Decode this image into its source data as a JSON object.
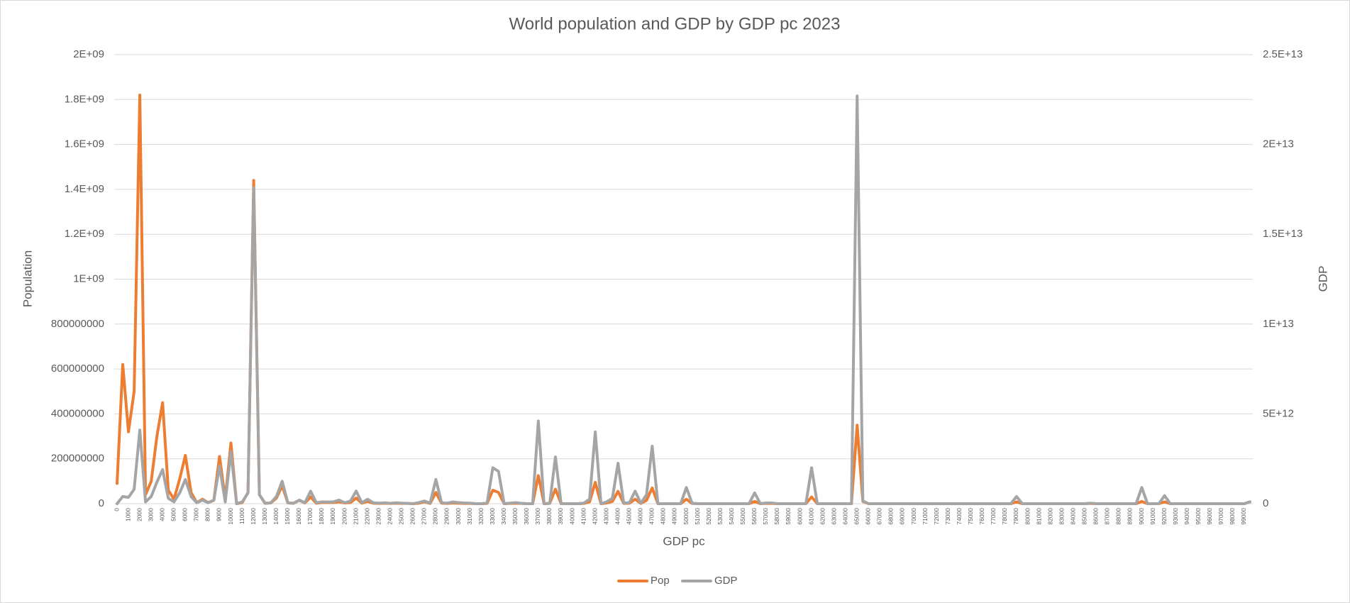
{
  "chart_data": {
    "type": "line",
    "title": "World population and GDP by GDP pc 2023",
    "x_label": "GDP pc",
    "y_label": "Population",
    "y2_label": "GDP",
    "grid": true,
    "legend": "bottom",
    "categories": [
      "0",
      null,
      "1000",
      null,
      "2000",
      null,
      "3000",
      null,
      "4000",
      null,
      "5000",
      null,
      "6000",
      null,
      "7000",
      null,
      "8000",
      null,
      "9000",
      null,
      "10000",
      null,
      "11000",
      null,
      "12000",
      null,
      "13000",
      null,
      "14000",
      null,
      "15000",
      null,
      "16000",
      null,
      "17000",
      null,
      "18000",
      null,
      "19000",
      null,
      "20000",
      null,
      "21000",
      null,
      "22000",
      null,
      "23000",
      null,
      "24000",
      null,
      "25000",
      null,
      "26000",
      null,
      "27000",
      null,
      "28000",
      null,
      "29000",
      null,
      "30000",
      null,
      "31000",
      null,
      "32000",
      null,
      "33000",
      null,
      "34000",
      null,
      "35000",
      null,
      "36000",
      null,
      "37000",
      null,
      "38000",
      null,
      "39000",
      null,
      "40000",
      null,
      "41000",
      null,
      "42000",
      null,
      "43000",
      null,
      "44000",
      null,
      "45000",
      null,
      "46000",
      null,
      "47000",
      null,
      "48000",
      null,
      "49000",
      null,
      "50000",
      null,
      "51000",
      null,
      "52000",
      null,
      "53000",
      null,
      "54000",
      null,
      "55000",
      null,
      "56000",
      null,
      "57000",
      null,
      "58000",
      null,
      "59000",
      null,
      "60000",
      null,
      "61000",
      null,
      "62000",
      null,
      "63000",
      null,
      "64000",
      null,
      "65000",
      null,
      "66000",
      null,
      "67000",
      null,
      "68000",
      null,
      "69000",
      null,
      "70000",
      null,
      "71000",
      null,
      "72000",
      null,
      "73000",
      null,
      "74000",
      null,
      "75000",
      null,
      "76000",
      null,
      "77000",
      null,
      "78000",
      null,
      "79000",
      null,
      "80000",
      null,
      "81000",
      null,
      "82000",
      null,
      "83000",
      null,
      "84000",
      null,
      "85000",
      null,
      "86000",
      null,
      "87000",
      null,
      "88000",
      null,
      "89000",
      null,
      "90000",
      null,
      "91000",
      null,
      "92000",
      null,
      "93000",
      null,
      "94000",
      null,
      "95000",
      null,
      "96000",
      null,
      "97000",
      null,
      "98000",
      null,
      "99000",
      null
    ],
    "ylim": [
      0,
      2000000000
    ],
    "yticks": [
      0,
      200000000,
      400000000,
      600000000,
      800000000,
      {
        "value": 1000000000,
        "label": "1E+09"
      },
      {
        "value": 1200000000,
        "label": "1.2E+09"
      },
      {
        "value": 1400000000,
        "label": "1.4E+09"
      },
      {
        "value": 1600000000,
        "label": "1.6E+09"
      },
      {
        "value": 1800000000,
        "label": "1.8E+09"
      },
      {
        "value": 2000000000,
        "label": "2E+09"
      }
    ],
    "y2lim": [
      0,
      25000000000000
    ],
    "y2ticks": [
      0,
      {
        "value": 5000000000000,
        "label": "5E+12"
      },
      {
        "value": 10000000000000,
        "label": "1E+13"
      },
      {
        "value": 15000000000000,
        "label": "1.5E+13"
      },
      {
        "value": 20000000000000,
        "label": "2E+13"
      },
      {
        "value": 25000000000000,
        "label": "2.5E+13"
      }
    ],
    "series": [
      {
        "name": "Pop",
        "color": "#ED7D31",
        "axis": "y",
        "values": [
          90000000,
          620000000,
          320000000,
          500000000,
          1820000000,
          40000000,
          100000000,
          300000000,
          450000000,
          60000000,
          20000000,
          110000000,
          215000000,
          50000000,
          5000000,
          20000000,
          5000000,
          15000000,
          210000000,
          20000000,
          270000000,
          0,
          5000000,
          50000000,
          1440000000,
          40000000,
          2000000,
          3000000,
          25000000,
          80000000,
          3000000,
          2000000,
          15000000,
          3000000,
          30000000,
          2000000,
          5000000,
          5000000,
          5000000,
          8000000,
          3000000,
          5000000,
          25000000,
          2000000,
          10000000,
          2000000,
          1000000,
          2000000,
          1000000,
          2000000,
          1000000,
          1000000,
          0,
          2000000,
          8000000,
          1000000,
          50000000,
          2000000,
          1000000,
          3000000,
          2000000,
          1000000,
          1000000,
          0,
          0,
          1000000,
          60000000,
          50000000,
          0,
          1000000,
          2000000,
          1000000,
          0,
          0,
          125000000,
          0,
          1000000,
          65000000,
          0,
          0,
          0,
          0,
          1000000,
          8000000,
          95000000,
          0,
          3000000,
          10000000,
          55000000,
          1000000,
          2000000,
          20000000,
          1000000,
          15000000,
          70000000,
          0,
          0,
          0,
          0,
          0,
          20000000,
          1000000,
          0,
          0,
          0,
          0,
          0,
          0,
          0,
          0,
          0,
          0,
          10000000,
          0,
          1000000,
          1000000,
          0,
          0,
          0,
          0,
          0,
          0,
          30000000,
          0,
          0,
          0,
          0,
          0,
          0,
          0,
          350000000,
          10000000,
          0,
          0,
          0,
          0,
          0,
          0,
          0,
          0,
          0,
          0,
          0,
          0,
          0,
          0,
          0,
          0,
          0,
          0,
          0,
          0,
          0,
          0,
          0,
          0,
          0,
          0,
          8000000,
          0,
          0,
          0,
          0,
          0,
          0,
          0,
          0,
          0,
          0,
          0,
          0,
          1000000,
          0,
          0,
          0,
          0,
          0,
          0,
          0,
          0,
          10000000,
          0,
          0,
          0,
          8000000,
          0,
          0,
          0,
          0,
          0,
          0,
          0,
          0,
          0,
          0,
          0,
          0,
          0,
          0,
          8000000
        ]
      },
      {
        "name": "GDP",
        "color": "#A5A5A5",
        "axis": "y2",
        "values": [
          0,
          400000000000.0,
          350000000000.0,
          800000000000.0,
          4100000000000.0,
          100000000000.0,
          400000000000.0,
          1200000000000.0,
          1900000000000.0,
          300000000000.0,
          100000000000.0,
          600000000000.0,
          1350000000000.0,
          400000000000.0,
          50000000000.0,
          200000000000.0,
          50000000000.0,
          200000000000.0,
          2100000000000.0,
          100000000000.0,
          2900000000000.0,
          0,
          100000000000.0,
          600000000000.0,
          17600000000000.0,
          500000000000.0,
          20000000000.0,
          50000000000.0,
          400000000000.0,
          1250000000000.0,
          50000000000.0,
          20000000000.0,
          200000000000.0,
          50000000000.0,
          700000000000.0,
          50000000000.0,
          100000000000.0,
          100000000000.0,
          100000000000.0,
          200000000000.0,
          50000000000.0,
          150000000000.0,
          700000000000.0,
          50000000000.0,
          250000000000.0,
          50000000000.0,
          30000000000.0,
          50000000000.0,
          20000000000.0,
          50000000000.0,
          30000000000.0,
          20000000000.0,
          0,
          60000000000.0,
          150000000000.0,
          30000000000.0,
          1350000000000.0,
          50000000000.0,
          30000000000.0,
          100000000000.0,
          60000000000.0,
          40000000000.0,
          30000000000.0,
          0,
          0,
          30000000000.0,
          2000000000000.0,
          1800000000000.0,
          0,
          30000000000.0,
          60000000000.0,
          20000000000.0,
          0,
          0,
          4600000000000.0,
          0,
          20000000000.0,
          2600000000000.0,
          0,
          0,
          0,
          0,
          30000000000.0,
          250000000000.0,
          4000000000000.0,
          0,
          100000000000.0,
          300000000000.0,
          2250000000000.0,
          30000000000.0,
          60000000000.0,
          700000000000.0,
          20000000000.0,
          500000000000.0,
          3200000000000.0,
          0,
          0,
          0,
          0,
          0,
          900000000000.0,
          30000000000.0,
          0,
          0,
          0,
          0,
          0,
          0,
          0,
          0,
          0,
          0,
          600000000000.0,
          0,
          40000000000.0,
          40000000000.0,
          0,
          0,
          0,
          0,
          0,
          0,
          2000000000000.0,
          0,
          0,
          0,
          0,
          0,
          0,
          0,
          22700000000000.0,
          150000000000.0,
          0,
          0,
          0,
          0,
          0,
          0,
          0,
          0,
          0,
          0,
          0,
          0,
          0,
          0,
          0,
          0,
          0,
          0,
          0,
          0,
          0,
          0,
          0,
          0,
          0,
          0,
          400000000000.0,
          0,
          0,
          0,
          0,
          0,
          0,
          0,
          0,
          0,
          0,
          0,
          0,
          30000000000.0,
          0,
          0,
          0,
          0,
          0,
          0,
          0,
          0,
          900000000000.0,
          0,
          0,
          0,
          450000000000.0,
          0,
          0,
          0,
          0,
          0,
          0,
          0,
          0,
          0,
          0,
          0,
          0,
          0,
          0,
          100000000000.0
        ]
      }
    ]
  }
}
